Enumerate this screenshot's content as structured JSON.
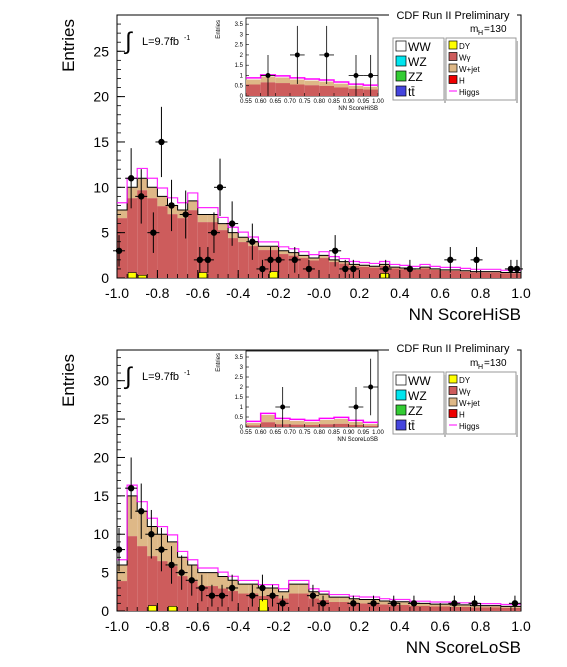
{
  "chart_data": [
    {
      "type": "bar",
      "title": "CDF Run II Preliminary",
      "mass_label": "m",
      "mass_sub": "H",
      "mass_value": "=130",
      "lumi_label": "L=9.7fb",
      "lumi_sup": "-1",
      "integral_symbol": "∫",
      "xlabel": "NN ScoreHiSB",
      "ylabel": "Entries",
      "xlim": [
        -1.0,
        1.0
      ],
      "ylim": [
        0,
        29
      ],
      "xticks": [
        "-1.0",
        "-0.8",
        "-0.6",
        "-0.4",
        "-0.2",
        "-0.0",
        "0.2",
        "0.4",
        "0.6",
        "0.8",
        "1.0"
      ],
      "yticks": [
        "0",
        "5",
        "10",
        "15",
        "20",
        "25"
      ],
      "bin_edges_start": -1.0,
      "bin_width": 0.05,
      "background_total": [
        7.5,
        10,
        11,
        10,
        9,
        8,
        7.5,
        8.5,
        7,
        7,
        6,
        5,
        4.5,
        4,
        3.5,
        3.5,
        3,
        2.8,
        2.5,
        2.2,
        2.5,
        2,
        1.8,
        1.5,
        1.4,
        1.3,
        1.5,
        1.2,
        1.1,
        1.0,
        1.2,
        1.0,
        0.9,
        0.9,
        0.8,
        0.7,
        0.7,
        0.7,
        0.6,
        0.6
      ],
      "yellow_bins": [
        0,
        0.6,
        0.3,
        0,
        0,
        0,
        0,
        0,
        0.6,
        0,
        0,
        0,
        0,
        0,
        0,
        0.7,
        0,
        0,
        0,
        0,
        0,
        0,
        0,
        0,
        0,
        0,
        0.5,
        0,
        0,
        0,
        0,
        0,
        0,
        0,
        0,
        0,
        0,
        0,
        0,
        0
      ],
      "data_points": [
        {
          "x": -0.99,
          "y": 3
        },
        {
          "x": -0.93,
          "y": 11
        },
        {
          "x": -0.88,
          "y": 9
        },
        {
          "x": -0.82,
          "y": 5
        },
        {
          "x": -0.78,
          "y": 15
        },
        {
          "x": -0.73,
          "y": 8
        },
        {
          "x": -0.66,
          "y": 7
        },
        {
          "x": -0.59,
          "y": 2
        },
        {
          "x": -0.55,
          "y": 2
        },
        {
          "x": -0.52,
          "y": 5
        },
        {
          "x": -0.49,
          "y": 10
        },
        {
          "x": -0.43,
          "y": 6
        },
        {
          "x": -0.33,
          "y": 4
        },
        {
          "x": -0.28,
          "y": 1
        },
        {
          "x": -0.24,
          "y": 2
        },
        {
          "x": -0.2,
          "y": 2
        },
        {
          "x": -0.12,
          "y": 2
        },
        {
          "x": -0.05,
          "y": 1
        },
        {
          "x": 0.08,
          "y": 3
        },
        {
          "x": 0.13,
          "y": 1
        },
        {
          "x": 0.17,
          "y": 1
        },
        {
          "x": 0.33,
          "y": 1
        },
        {
          "x": 0.45,
          "y": 1
        },
        {
          "x": 0.65,
          "y": 2
        },
        {
          "x": 0.78,
          "y": 2
        },
        {
          "x": 0.95,
          "y": 1
        },
        {
          "x": 0.98,
          "y": 1
        }
      ],
      "legend": [
        {
          "label": "WW",
          "color": "#ffffff"
        },
        {
          "label": "WZ",
          "color": "#00e5ee"
        },
        {
          "label": "ZZ",
          "color": "#33cc33"
        },
        {
          "label": "tt̄",
          "color": "#4444dd"
        },
        {
          "label": "DY",
          "color": "#ffff00"
        },
        {
          "label": "Wγ",
          "color": "#cd5c5c"
        },
        {
          "label": "W+jet",
          "color": "#deb887"
        },
        {
          "label": "H",
          "color": "#ee0000"
        },
        {
          "label": "Higgs",
          "color": "#ff00ff"
        }
      ],
      "inset": {
        "xlabel": "NN ScoreHiSB",
        "ylabel": "Entries",
        "xticks": [
          "0.55",
          "0.60",
          "0.65",
          "0.70",
          "0.75",
          "0.80",
          "0.85",
          "0.90",
          "0.95",
          "1.00"
        ],
        "yticks": [
          "0",
          "0.5",
          "1",
          "1.5",
          "2",
          "2.5",
          "3",
          "3.5"
        ],
        "xlim": [
          0.55,
          1.0
        ],
        "ylim": [
          0,
          3.8
        ],
        "bin_width": 0.05,
        "background_total": [
          0.8,
          0.95,
          0.9,
          0.8,
          0.75,
          0.7,
          0.6,
          0.5,
          0.45
        ],
        "data_points": [
          {
            "x": 0.625,
            "y": 1
          },
          {
            "x": 0.725,
            "y": 2
          },
          {
            "x": 0.825,
            "y": 2
          },
          {
            "x": 0.925,
            "y": 1
          },
          {
            "x": 0.975,
            "y": 1
          }
        ]
      }
    },
    {
      "type": "bar",
      "title": "CDF Run II Preliminary",
      "mass_label": "m",
      "mass_sub": "H",
      "mass_value": "=130",
      "lumi_label": "L=9.7fb",
      "lumi_sup": "-1",
      "integral_symbol": "∫",
      "xlabel": "NN ScoreLoSB",
      "ylabel": "Entries",
      "xlim": [
        -1.0,
        1.0
      ],
      "ylim": [
        0,
        34
      ],
      "xticks": [
        "-1.0",
        "-0.8",
        "-0.6",
        "-0.4",
        "-0.2",
        "-0.0",
        "0.2",
        "0.4",
        "0.6",
        "0.8",
        "1.0"
      ],
      "yticks": [
        "0",
        "5",
        "10",
        "15",
        "20",
        "25",
        "30"
      ],
      "bin_edges_start": -1.0,
      "bin_width": 0.05,
      "background_total": [
        6,
        15,
        13,
        11,
        10,
        9,
        7,
        6,
        5,
        5,
        4.5,
        4,
        3.5,
        3.5,
        3,
        3,
        2.5,
        3.5,
        3.5,
        2.5,
        2.2,
        1.8,
        1.8,
        1.6,
        1.5,
        1.5,
        1.3,
        1.2,
        1.2,
        1.0,
        1.0,
        0.9,
        0.9,
        0.8,
        0.8,
        0.7,
        0.7,
        0.7,
        0.6,
        0.6
      ],
      "yellow_bins": [
        0,
        0,
        0,
        0.7,
        0,
        0.6,
        0,
        0,
        0,
        0,
        0,
        0,
        0,
        0,
        1.5,
        0,
        0,
        0,
        0,
        0,
        0,
        0,
        0,
        0,
        0,
        0,
        0,
        0,
        0,
        0,
        0,
        0,
        0,
        0,
        0,
        0,
        0,
        0,
        0,
        0
      ],
      "data_points": [
        {
          "x": -0.99,
          "y": 8
        },
        {
          "x": -0.93,
          "y": 16
        },
        {
          "x": -0.88,
          "y": 13
        },
        {
          "x": -0.83,
          "y": 10
        },
        {
          "x": -0.78,
          "y": 8
        },
        {
          "x": -0.73,
          "y": 6
        },
        {
          "x": -0.68,
          "y": 5
        },
        {
          "x": -0.63,
          "y": 4
        },
        {
          "x": -0.58,
          "y": 3
        },
        {
          "x": -0.53,
          "y": 2
        },
        {
          "x": -0.48,
          "y": 2
        },
        {
          "x": -0.43,
          "y": 3
        },
        {
          "x": -0.33,
          "y": 2
        },
        {
          "x": -0.28,
          "y": 3
        },
        {
          "x": -0.23,
          "y": 2
        },
        {
          "x": -0.18,
          "y": 1
        },
        {
          "x": -0.03,
          "y": 2
        },
        {
          "x": 0.02,
          "y": 1
        },
        {
          "x": 0.17,
          "y": 1
        },
        {
          "x": 0.27,
          "y": 1
        },
        {
          "x": 0.37,
          "y": 1
        },
        {
          "x": 0.47,
          "y": 1
        },
        {
          "x": 0.67,
          "y": 1
        },
        {
          "x": 0.77,
          "y": 1
        },
        {
          "x": 0.97,
          "y": 1
        }
      ],
      "legend": [
        {
          "label": "WW",
          "color": "#ffffff"
        },
        {
          "label": "WZ",
          "color": "#00e5ee"
        },
        {
          "label": "ZZ",
          "color": "#33cc33"
        },
        {
          "label": "tt̄",
          "color": "#4444dd"
        },
        {
          "label": "DY",
          "color": "#ffff00"
        },
        {
          "label": "Wγ",
          "color": "#cd5c5c"
        },
        {
          "label": "W+jet",
          "color": "#deb887"
        },
        {
          "label": "H",
          "color": "#ee0000"
        },
        {
          "label": "Higgs",
          "color": "#ff00ff"
        }
      ],
      "inset": {
        "xlabel": "NN ScoreLoSB",
        "ylabel": "Entries",
        "xticks": [
          "0.55",
          "0.60",
          "0.65",
          "0.70",
          "0.75",
          "0.80",
          "0.85",
          "0.90",
          "0.95",
          "1.00"
        ],
        "yticks": [
          "0",
          "0.5",
          "1",
          "1.5",
          "2",
          "2.5",
          "3",
          "3.5"
        ],
        "xlim": [
          0.55,
          1.0
        ],
        "ylim": [
          0,
          3.8
        ],
        "bin_width": 0.05,
        "background_total": [
          0.2,
          0.6,
          0.35,
          0.3,
          0.25,
          0.35,
          0.4,
          0.25,
          0.15
        ],
        "data_points": [
          {
            "x": 0.675,
            "y": 1
          },
          {
            "x": 0.925,
            "y": 1
          },
          {
            "x": 0.975,
            "y": 2
          }
        ]
      }
    }
  ]
}
